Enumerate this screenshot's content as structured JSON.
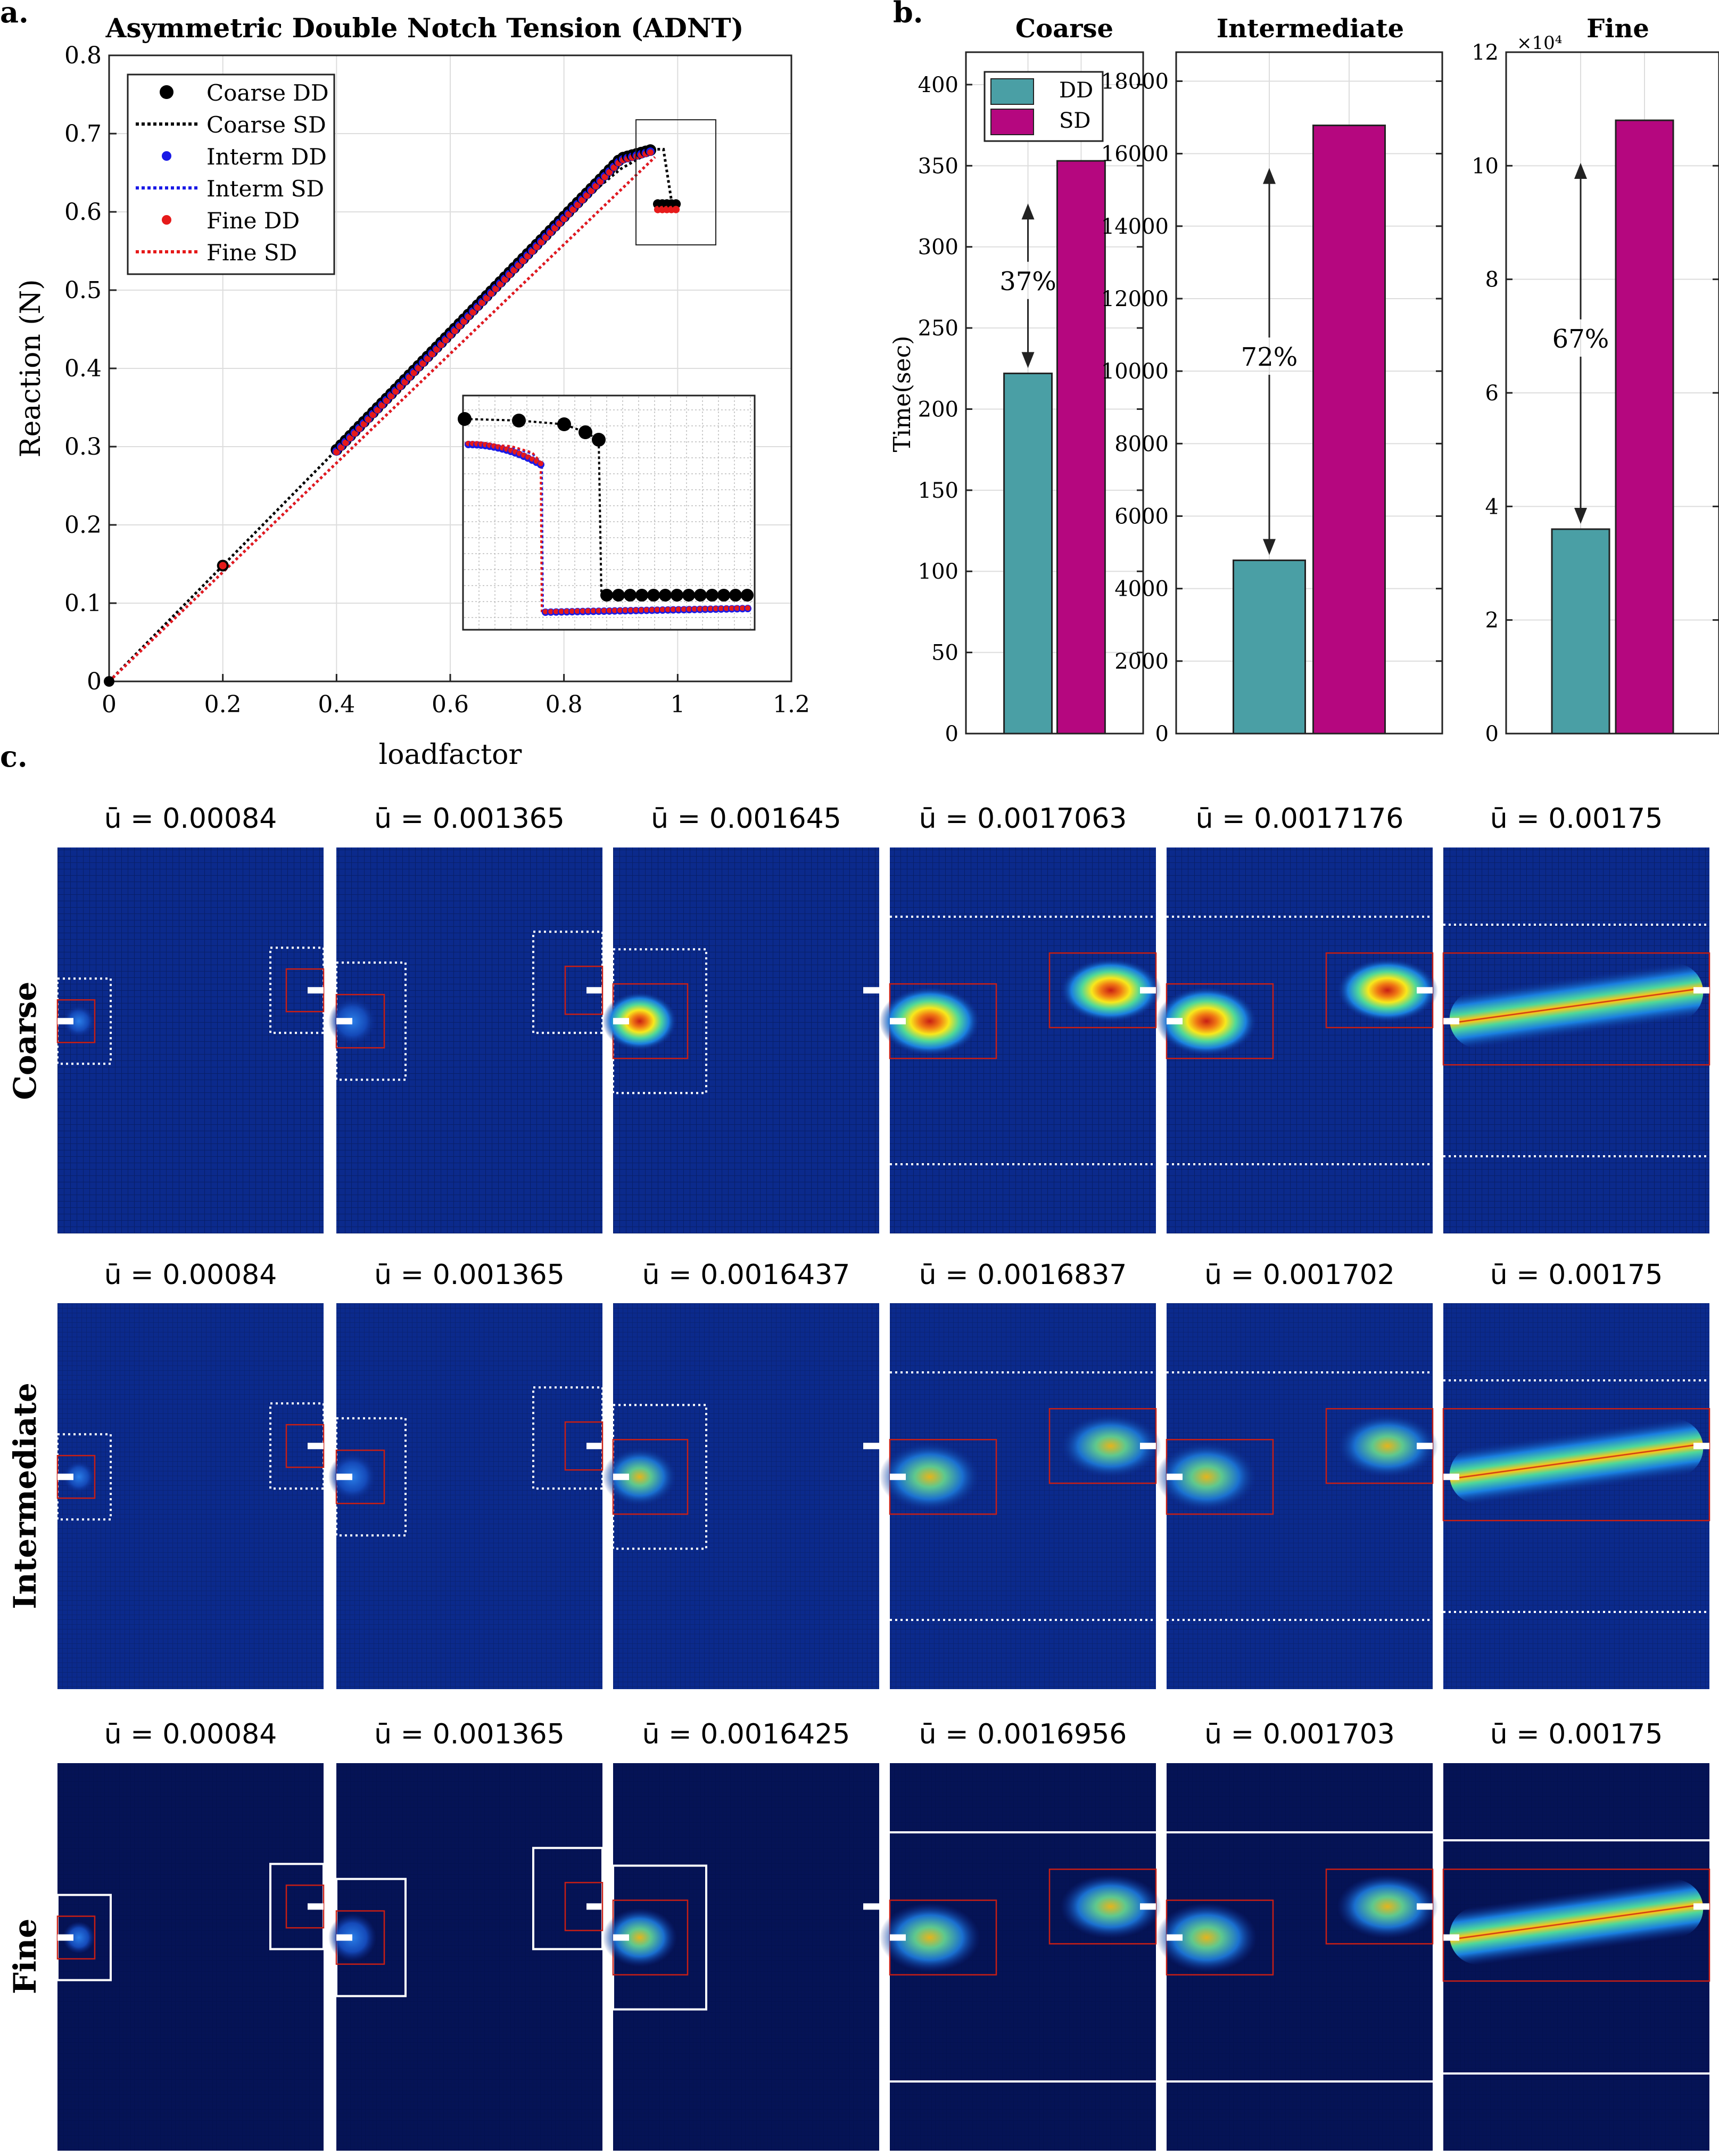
{
  "panel_labels": {
    "a": "a.",
    "b": "b.",
    "c": "c."
  },
  "colors": {
    "dd": "#4a9fa5",
    "sd": "#b5077f",
    "coarse": "#000000",
    "interm": "#1a1ae6",
    "fine": "#e61a1a",
    "field_bg": "#0b2a8c",
    "fine_bg": "#051356"
  },
  "chart_data": [
    {
      "type": "scatter",
      "title": "Asymmetric Double Notch Tension (ADNT)",
      "xlabel": "loadfactor",
      "ylabel": "Reaction (N)",
      "xlim": [
        0,
        1.2
      ],
      "ylim": [
        0,
        0.8
      ],
      "xticks": [
        "0",
        "0.2",
        "0.4",
        "0.6",
        "0.8",
        "1",
        "1.2"
      ],
      "yticks": [
        "0",
        "0.1",
        "0.2",
        "0.3",
        "0.4",
        "0.5",
        "0.6",
        "0.7",
        "0.8"
      ],
      "grid": true,
      "legend_position": "top-left",
      "series": [
        {
          "name": "Coarse DD",
          "style": "dot"
        },
        {
          "name": "Coarse SD",
          "style": "dotted-line"
        },
        {
          "name": "Interm DD",
          "style": "dot"
        },
        {
          "name": "Interm SD",
          "style": "dotted-line"
        },
        {
          "name": "Fine DD",
          "style": "dot"
        },
        {
          "name": "Fine SD",
          "style": "dotted-line"
        }
      ],
      "key_points": [
        [
          0,
          0
        ],
        [
          0.2,
          0.148
        ],
        [
          0.4,
          0.296
        ],
        [
          0.5,
          0.37
        ],
        [
          0.6,
          0.445
        ],
        [
          0.7,
          0.52
        ],
        [
          0.8,
          0.595
        ],
        [
          0.9,
          0.655
        ],
        [
          0.96,
          0.68
        ],
        [
          0.975,
          0.68
        ],
        [
          0.99,
          0.61
        ],
        [
          1.0,
          0.61
        ]
      ],
      "fine_peak": [
        0.965,
        0.672
      ],
      "fine_post": [
        0.975,
        0.602
      ],
      "inset": "zoom of peak region"
    },
    {
      "type": "bar",
      "title": "Coarse",
      "ylabel": "Time(sec)",
      "categories": [
        "DD",
        "SD"
      ],
      "values": [
        222,
        353
      ],
      "ylim": [
        0,
        420
      ],
      "yticks": [
        "0",
        "50",
        "100",
        "150",
        "200",
        "250",
        "300",
        "350",
        "400"
      ],
      "annotation": "37%",
      "legend": [
        "DD",
        "SD"
      ]
    },
    {
      "type": "bar",
      "title": "Intermediate",
      "categories": [
        "DD",
        "SD"
      ],
      "values": [
        4780,
        16780
      ],
      "ylim": [
        0,
        18800
      ],
      "yticks": [
        "0",
        "2000",
        "4000",
        "6000",
        "8000",
        "10000",
        "12000",
        "14000",
        "16000",
        "18000"
      ],
      "annotation": "72%"
    },
    {
      "type": "bar",
      "title": "Fine",
      "categories": [
        "DD",
        "SD"
      ],
      "values": [
        3.6,
        10.8
      ],
      "ylim": [
        0,
        12
      ],
      "yticks": [
        "0",
        "2",
        "4",
        "6",
        "8",
        "10",
        "12"
      ],
      "scale_label": "×10⁴",
      "annotation": "67%"
    },
    {
      "type": "heatmap",
      "rows": [
        {
          "label": "Coarse",
          "titles": [
            "ū = 0.00084",
            "ū = 0.001365",
            "ū = 0.001645",
            "ū = 0.0017063",
            "ū = 0.0017176",
            "ū = 0.00175"
          ]
        },
        {
          "label": "Intermediate",
          "titles": [
            "ū = 0.00084",
            "ū = 0.001365",
            "ū = 0.0016437",
            "ū = 0.0016837",
            "ū = 0.001702",
            "ū = 0.00175"
          ]
        },
        {
          "label": "Fine",
          "titles": [
            "ū = 0.00084",
            "ū = 0.001365",
            "ū = 0.0016425",
            "ū = 0.0016956",
            "ū = 0.001703",
            "ū = 0.00175"
          ]
        }
      ]
    }
  ]
}
